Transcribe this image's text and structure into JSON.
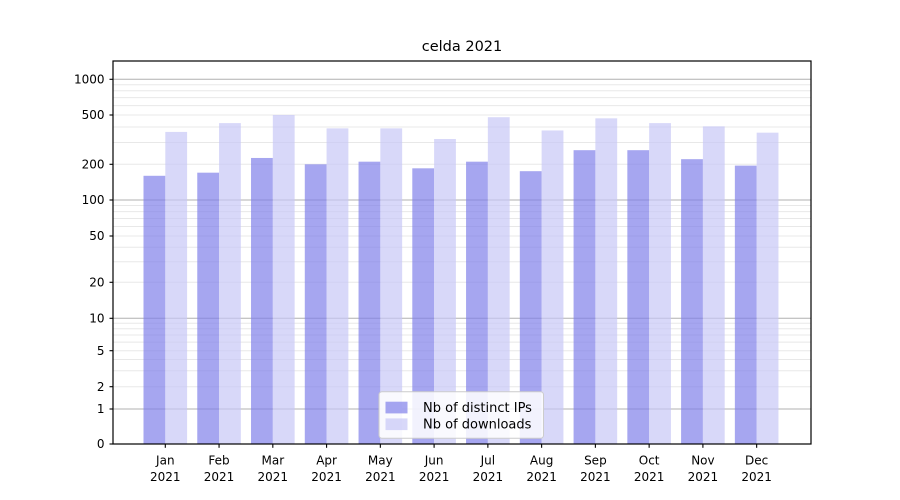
{
  "chart_data": {
    "type": "bar",
    "title": "celda 2021",
    "x_months": [
      "Jan",
      "Feb",
      "Mar",
      "Apr",
      "May",
      "Jun",
      "Jul",
      "Aug",
      "Sep",
      "Oct",
      "Nov",
      "Dec"
    ],
    "x_year": "2021",
    "series": [
      {
        "name": "Nb of distinct IPs",
        "color": "#8080ea",
        "values": [
          160,
          170,
          225,
          200,
          210,
          185,
          210,
          175,
          260,
          260,
          220,
          195
        ]
      },
      {
        "name": "Nb of downloads",
        "color": "#c8c8f6",
        "values": [
          365,
          430,
          500,
          390,
          390,
          320,
          480,
          375,
          470,
          430,
          405,
          360
        ]
      }
    ],
    "bar_opacity": 0.7,
    "yscale": "symlog",
    "y_ticks": [
      0,
      1,
      2,
      5,
      10,
      20,
      50,
      100,
      200,
      500,
      1000
    ],
    "ylim": [
      0,
      1900
    ],
    "grid": true,
    "legend_position": "inside-bottom-center"
  },
  "colors": {
    "background": "#ffffff",
    "spine": "#000000",
    "grid_major": "#b0b0b0",
    "grid_minor": "#e8e8e8",
    "legend_border": "#cccccc",
    "legend_bg": "rgba(255,255,255,0.85)"
  }
}
